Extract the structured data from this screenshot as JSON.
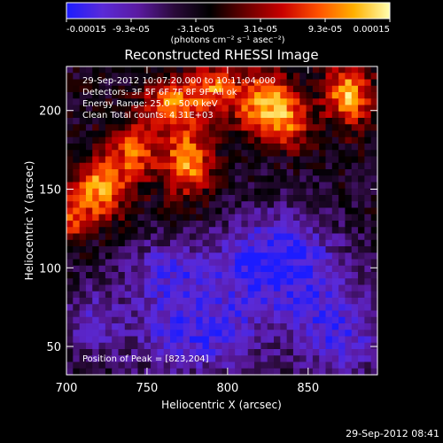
{
  "colors": {
    "background": "#000000",
    "text": "#ffffff",
    "colormap": [
      "#1c1cff",
      "#5a2ad8",
      "#5a1aa0",
      "#2a0a3a",
      "#000000",
      "#6a0000",
      "#c80000",
      "#ff5000",
      "#ffb000",
      "#ffffb0"
    ]
  },
  "colorbar": {
    "tick_labels": [
      "-0.00015",
      "-9.3e-05",
      "-3.1e-05",
      "3.1e-05",
      "9.3e-05",
      "0.00015"
    ],
    "range": [
      -0.00015,
      0.00015
    ],
    "units_label": "(photons cm⁻² s⁻¹ asec⁻²)"
  },
  "annotations": {
    "time_range": "29-Sep-2012 10:07:20.000 to 10:11:04.000",
    "detectors": "Detectors: 3F 5F 6F 7F 8F 9F All ok",
    "energy": "Energy Range: 25.0 - 50.0 keV",
    "algorithm": "Clean    Total counts: 4.31E+03",
    "peak": "Position of Peak = [823,204]"
  },
  "footer": {
    "timestamp": "29-Sep-2012 08:41"
  },
  "chart_data": {
    "type": "heatmap",
    "title": "Reconstructed RHESSI Image",
    "xlabel": "Heliocentric X (arcsec)",
    "ylabel": "Heliocentric Y (arcsec)",
    "xlim": [
      700,
      893
    ],
    "ylim": [
      32,
      228
    ],
    "xticks": [
      700,
      750,
      800,
      850
    ],
    "yticks": [
      50,
      100,
      150,
      200
    ],
    "value_range": [
      -0.00015,
      0.00015
    ],
    "peak": [
      823,
      204
    ],
    "sources": [
      {
        "x": 720,
        "y": 150,
        "sx": 12,
        "sy": 14,
        "amp": 0.00014
      },
      {
        "x": 742,
        "y": 175,
        "sx": 10,
        "sy": 14,
        "amp": 0.00011
      },
      {
        "x": 775,
        "y": 168,
        "sx": 11,
        "sy": 16,
        "amp": 0.00014
      },
      {
        "x": 765,
        "y": 205,
        "sx": 12,
        "sy": 10,
        "amp": 0.00012
      },
      {
        "x": 790,
        "y": 215,
        "sx": 10,
        "sy": 10,
        "amp": 0.00011
      },
      {
        "x": 823,
        "y": 204,
        "sx": 14,
        "sy": 14,
        "amp": 0.00015
      },
      {
        "x": 875,
        "y": 210,
        "sx": 10,
        "sy": 14,
        "amp": 0.00015
      },
      {
        "x": 840,
        "y": 190,
        "sx": 9,
        "sy": 10,
        "amp": 8e-05
      },
      {
        "x": 700,
        "y": 130,
        "sx": 9,
        "sy": 10,
        "amp": 9e-05
      },
      {
        "x": 830,
        "y": 105,
        "sx": 26,
        "sy": 22,
        "amp": -0.00012
      },
      {
        "x": 780,
        "y": 60,
        "sx": 30,
        "sy": 22,
        "amp": -0.0001
      },
      {
        "x": 870,
        "y": 60,
        "sx": 22,
        "sy": 24,
        "amp": -9e-05
      },
      {
        "x": 760,
        "y": 100,
        "sx": 20,
        "sy": 14,
        "amp": -7e-05
      },
      {
        "x": 715,
        "y": 65,
        "sx": 14,
        "sy": 18,
        "amp": -6e-05
      }
    ]
  }
}
